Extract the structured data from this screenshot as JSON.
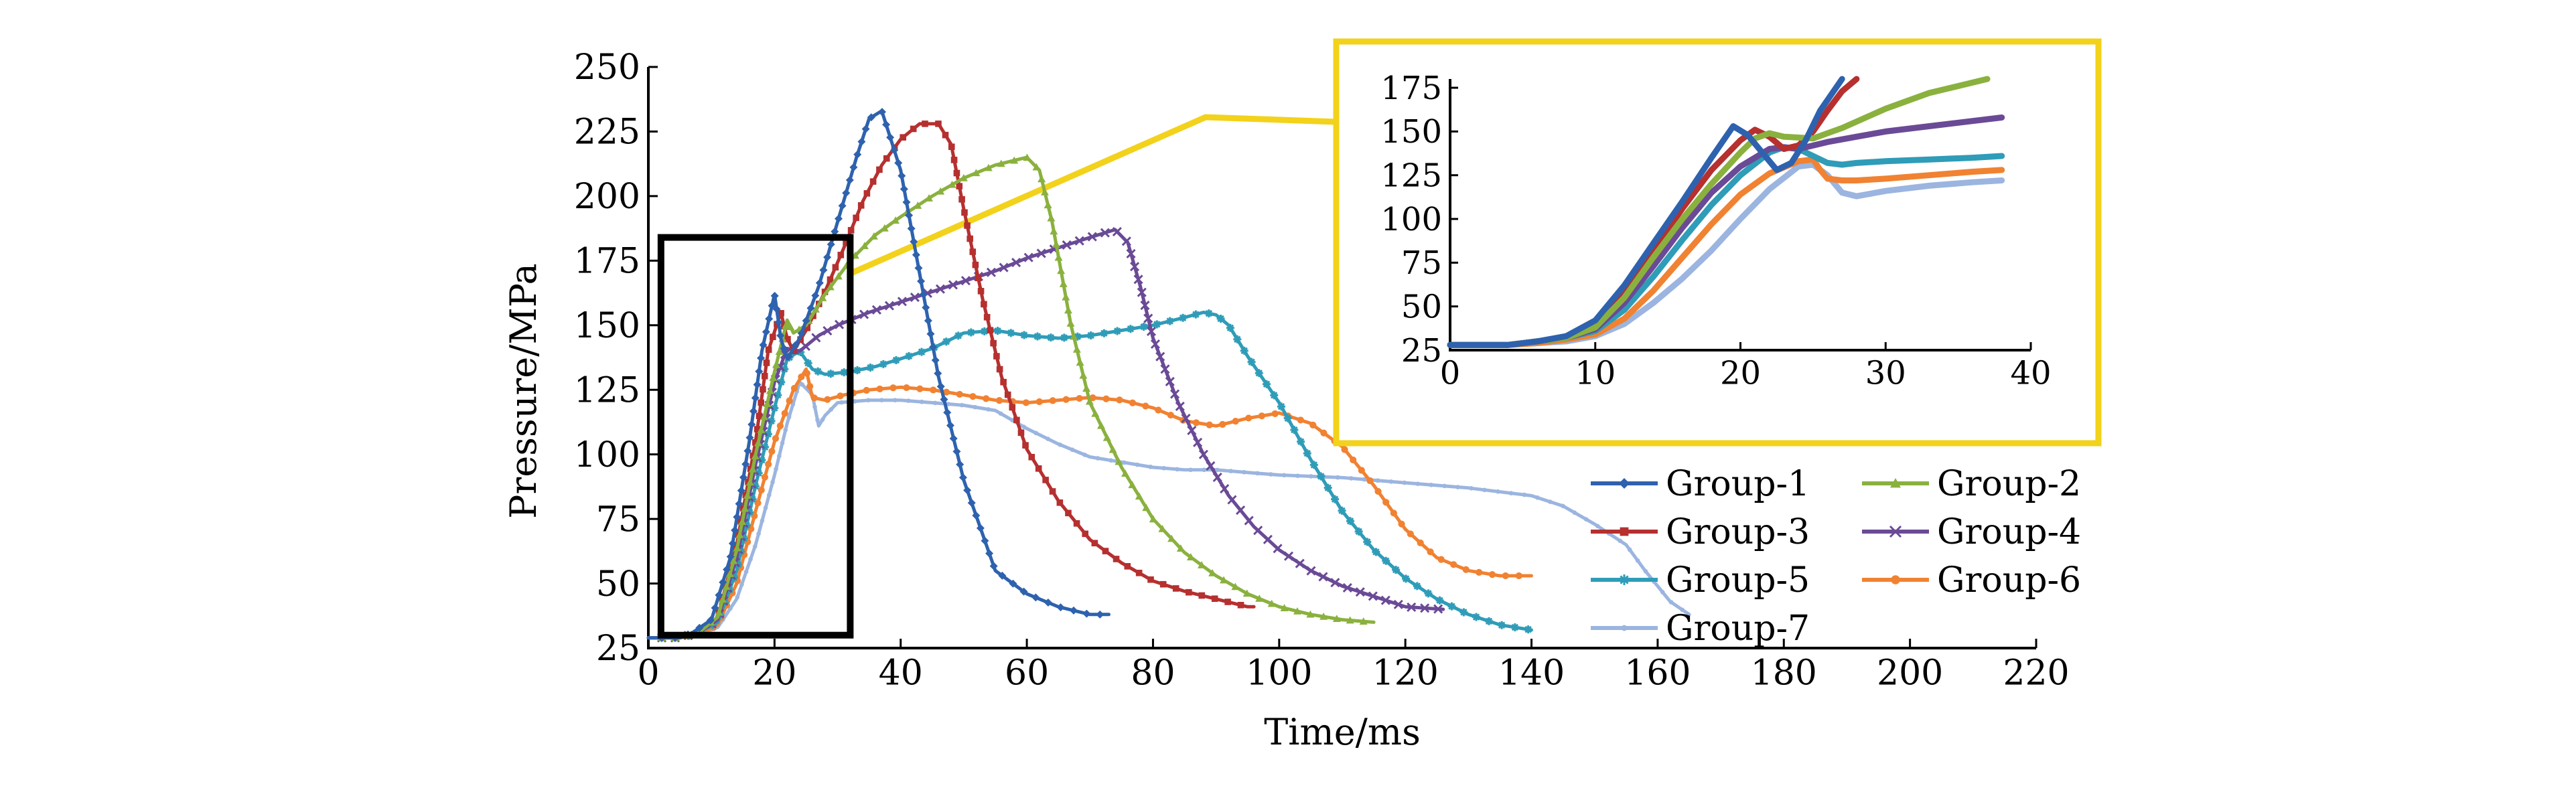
{
  "chart_data": [
    {
      "type": "line",
      "xlabel": "Time/ms",
      "ylabel": "Pressure/MPa",
      "xlim": [
        0,
        220
      ],
      "ylim": [
        25,
        250
      ],
      "xticks": [
        "0",
        "20",
        "40",
        "60",
        "80",
        "100",
        "120",
        "140",
        "160",
        "180",
        "200",
        "220"
      ],
      "yticks": [
        "25",
        "50",
        "75",
        "100",
        "125",
        "150",
        "175",
        "200",
        "225",
        "250"
      ],
      "legend_position": "lower-right",
      "highlight_box": {
        "x": [
          2,
          32
        ],
        "y": [
          30,
          184
        ],
        "color": "#000000"
      },
      "series": [
        {
          "name": "Group-1",
          "color": "#2E62AE",
          "marker": "diamond",
          "x": [
            0,
            5,
            7,
            10,
            13,
            16,
            18,
            20,
            21,
            22,
            24,
            27,
            30,
            33,
            35,
            37,
            40,
            43,
            46,
            50,
            55,
            60,
            65,
            70,
            73
          ],
          "y": [
            29,
            29,
            31,
            36,
            60,
            105,
            140,
            162,
            145,
            137,
            145,
            165,
            190,
            215,
            230,
            233,
            210,
            170,
            130,
            90,
            55,
            46,
            41,
            38,
            38
          ]
        },
        {
          "name": "Group-2",
          "color": "#8AB13E",
          "marker": "triangle",
          "x": [
            0,
            5,
            8,
            11,
            14,
            17,
            20,
            22,
            23,
            25,
            28,
            32,
            36,
            40,
            45,
            50,
            55,
            60,
            62,
            64,
            67,
            70,
            75,
            80,
            85,
            90,
            95,
            100,
            105,
            110,
            115
          ],
          "y": [
            29,
            29,
            31,
            37,
            63,
            100,
            132,
            152,
            147,
            150,
            162,
            175,
            185,
            192,
            200,
            207,
            212,
            215,
            210,
            190,
            150,
            120,
            95,
            75,
            62,
            53,
            46,
            41,
            38,
            36,
            35
          ]
        },
        {
          "name": "Group-3",
          "color": "#B5302F",
          "marker": "square",
          "x": [
            0,
            5,
            8,
            11,
            14,
            17,
            19,
            21,
            22,
            23,
            25,
            28,
            31,
            34,
            37,
            40,
            43,
            46,
            48,
            50,
            53,
            56,
            60,
            65,
            70,
            75,
            80,
            85,
            90,
            95,
            96
          ],
          "y": [
            29,
            29,
            31,
            37,
            65,
            105,
            140,
            155,
            145,
            140,
            148,
            163,
            180,
            198,
            212,
            222,
            228,
            228,
            220,
            195,
            160,
            130,
            102,
            82,
            67,
            58,
            51,
            47,
            44,
            41,
            41
          ]
        },
        {
          "name": "Group-4",
          "color": "#6A4A96",
          "marker": "x",
          "x": [
            0,
            5,
            8,
            11,
            14,
            17,
            20,
            22,
            24,
            27,
            30,
            35,
            40,
            45,
            50,
            55,
            60,
            65,
            70,
            74,
            76,
            78,
            80,
            84,
            88,
            92,
            96,
            100,
            105,
            110,
            115,
            120,
            126
          ],
          "y": [
            29,
            29,
            31,
            36,
            60,
            96,
            128,
            141,
            140,
            146,
            150,
            155,
            159,
            163,
            167,
            171,
            176,
            180,
            184,
            187,
            182,
            165,
            145,
            120,
            100,
            84,
            72,
            63,
            55,
            49,
            45,
            41,
            40
          ]
        },
        {
          "name": "Group-5",
          "color": "#2F9CB8",
          "marker": "star",
          "x": [
            0,
            5,
            8,
            11,
            14,
            17,
            20,
            22,
            24,
            26,
            28,
            32,
            36,
            40,
            45,
            50,
            55,
            60,
            65,
            70,
            75,
            80,
            85,
            88,
            90,
            92,
            95,
            100,
            105,
            110,
            115,
            120,
            125,
            130,
            135,
            140
          ],
          "y": [
            29,
            29,
            31,
            35,
            55,
            88,
            118,
            137,
            140,
            133,
            131,
            132,
            134,
            137,
            141,
            147,
            148,
            146,
            145,
            146,
            148,
            150,
            153,
            155,
            154,
            150,
            138,
            120,
            98,
            78,
            63,
            52,
            44,
            38,
            34,
            32
          ]
        },
        {
          "name": "Group-6",
          "color": "#F08232",
          "marker": "circle",
          "x": [
            0,
            5,
            8,
            11,
            14,
            17,
            20,
            23,
            25,
            26,
            28,
            31,
            35,
            40,
            45,
            50,
            55,
            60,
            65,
            70,
            75,
            80,
            85,
            90,
            95,
            100,
            105,
            110,
            115,
            120,
            125,
            130,
            135,
            140
          ],
          "y": [
            29,
            29,
            30,
            34,
            50,
            78,
            105,
            125,
            133,
            122,
            121,
            123,
            125,
            126,
            125,
            123,
            121,
            120,
            121,
            122,
            121,
            118,
            113,
            111,
            114,
            116,
            112,
            103,
            88,
            71,
            60,
            55,
            53,
            53
          ]
        },
        {
          "name": "Group-7",
          "color": "#9BB5E0",
          "marker": "dot",
          "x": [
            0,
            5,
            8,
            11,
            14,
            17,
            20,
            22,
            24,
            26,
            27,
            28,
            30,
            35,
            40,
            45,
            50,
            55,
            60,
            65,
            70,
            75,
            80,
            85,
            90,
            95,
            100,
            110,
            120,
            130,
            140,
            145,
            150,
            155,
            158,
            162,
            165
          ],
          "y": [
            29,
            29,
            30,
            33,
            44,
            65,
            92,
            112,
            128,
            123,
            111,
            115,
            120,
            121,
            121,
            120,
            119,
            117,
            110,
            104,
            99,
            97,
            95,
            94,
            94,
            93,
            92,
            91,
            89,
            87,
            84,
            80,
            73,
            65,
            55,
            43,
            38
          ]
        }
      ]
    },
    {
      "type": "line",
      "title": "",
      "xlim": [
        0,
        40
      ],
      "ylim": [
        25,
        180
      ],
      "xticks": [
        "0",
        "10",
        "20",
        "30",
        "40"
      ],
      "yticks": [
        "25",
        "50",
        "75",
        "100",
        "125",
        "150",
        "175"
      ],
      "frame_color": "#F2D21B",
      "series": [
        {
          "name": "Group-1",
          "color": "#2E62AE",
          "x": [
            0,
            4,
            6,
            8,
            10,
            12,
            14,
            16,
            18,
            19.5,
            20.5,
            21.5,
            22.5,
            23.5,
            24.5,
            25.5,
            27
          ],
          "y": [
            28,
            28,
            30,
            33,
            42,
            62,
            86,
            110,
            135,
            153,
            148,
            138,
            128,
            132,
            145,
            162,
            180
          ]
        },
        {
          "name": "Group-2",
          "color": "#8AB13E",
          "x": [
            0,
            4,
            6,
            8,
            10,
            12,
            14,
            16,
            18,
            20,
            21,
            22,
            23,
            25,
            27,
            30,
            33,
            37
          ],
          "y": [
            28,
            28,
            30,
            32,
            38,
            55,
            78,
            100,
            120,
            138,
            146,
            149,
            147,
            146,
            152,
            163,
            172,
            180
          ]
        },
        {
          "name": "Group-3",
          "color": "#B5302F",
          "x": [
            0,
            4,
            6,
            8,
            10,
            12,
            14,
            16,
            18,
            20,
            21,
            22,
            23,
            24,
            25,
            26,
            27,
            28
          ],
          "y": [
            28,
            28,
            30,
            32,
            40,
            58,
            82,
            106,
            128,
            145,
            151,
            147,
            140,
            142,
            150,
            162,
            173,
            180
          ]
        },
        {
          "name": "Group-4",
          "color": "#6A4A96",
          "x": [
            0,
            4,
            6,
            8,
            10,
            12,
            14,
            16,
            18,
            20,
            22,
            23,
            24,
            26,
            28,
            30,
            33,
            36,
            38
          ],
          "y": [
            28,
            28,
            30,
            32,
            37,
            52,
            73,
            95,
            115,
            130,
            140,
            141,
            140,
            144,
            147,
            150,
            153,
            156,
            158
          ]
        },
        {
          "name": "Group-5",
          "color": "#2F9CB8",
          "x": [
            0,
            4,
            6,
            8,
            10,
            12,
            14,
            16,
            18,
            20,
            22,
            23,
            24,
            25,
            26,
            27,
            28,
            30,
            33,
            36,
            38
          ],
          "y": [
            28,
            28,
            30,
            32,
            36,
            48,
            67,
            88,
            108,
            125,
            138,
            141,
            140,
            136,
            132,
            131,
            132,
            133,
            134,
            135,
            136
          ]
        },
        {
          "name": "Group-6",
          "color": "#F08232",
          "x": [
            0,
            4,
            6,
            8,
            10,
            12,
            14,
            16,
            18,
            20,
            22,
            24,
            25,
            25.5,
            26,
            27,
            28,
            30,
            33,
            36,
            38
          ],
          "y": [
            28,
            28,
            29,
            31,
            34,
            43,
            59,
            78,
            97,
            114,
            126,
            133,
            134,
            128,
            123,
            122,
            122,
            123,
            125,
            127,
            128
          ]
        },
        {
          "name": "Group-7",
          "color": "#9BB5E0",
          "x": [
            0,
            4,
            6,
            8,
            10,
            12,
            14,
            16,
            18,
            20,
            22,
            24,
            25,
            26,
            27,
            28,
            30,
            33,
            36,
            38
          ],
          "y": [
            28,
            28,
            29,
            30,
            33,
            40,
            52,
            66,
            82,
            100,
            117,
            130,
            131,
            125,
            115,
            113,
            116,
            119,
            121,
            122
          ]
        }
      ]
    }
  ]
}
